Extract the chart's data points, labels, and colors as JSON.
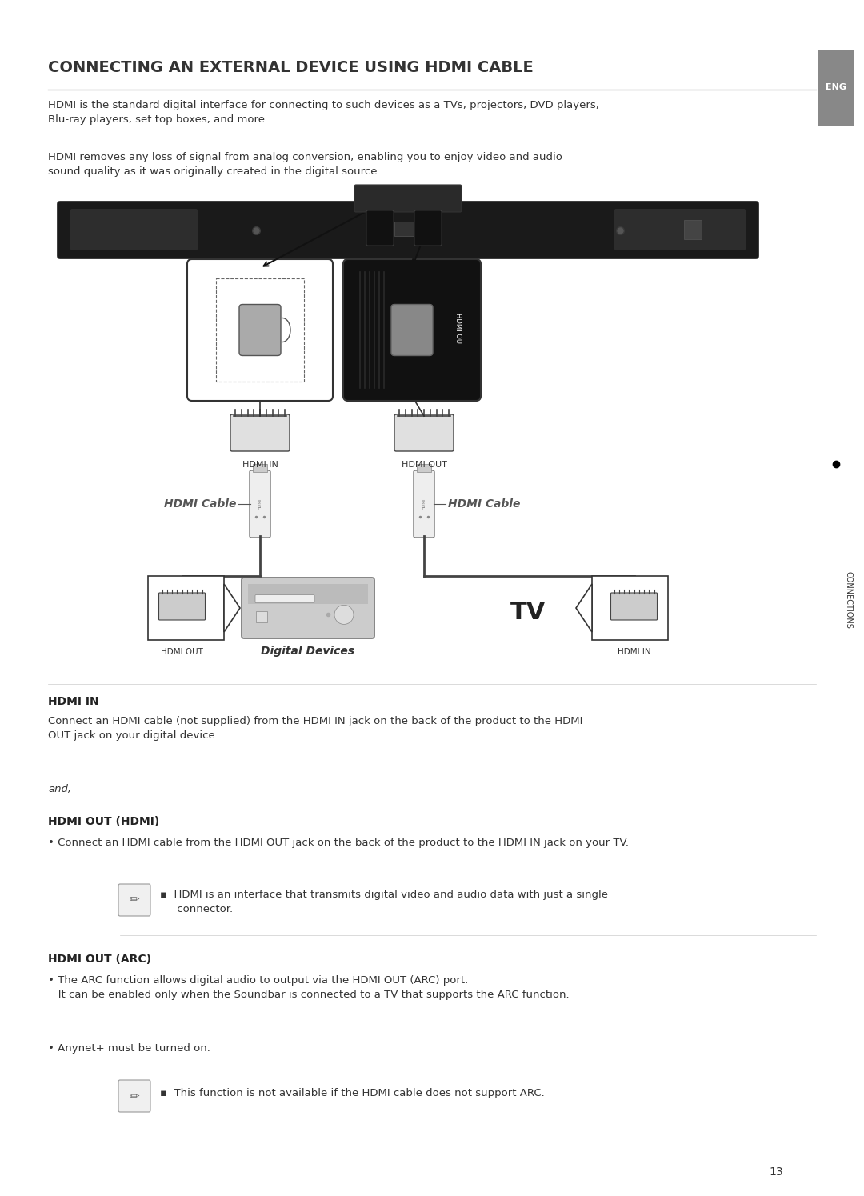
{
  "title": "CONNECTING AN EXTERNAL DEVICE USING HDMI CABLE",
  "bg_color": "#ffffff",
  "text_color": "#333333",
  "para1": "HDMI is the standard digital interface for connecting to such devices as a TVs, projectors, DVD players,\nBlu-ray players, set top boxes, and more.",
  "para2": "HDMI removes any loss of signal from analog conversion, enabling you to enjoy video and audio\nsound quality as it was originally created in the digital source.",
  "hdmi_in_label": "HDMI IN",
  "hdmi_in_text": "Connect an HDMI cable (not supplied) from the HDMI IN jack on the back of the product to the HDMI\nOUT jack on your digital device.",
  "and_text": "and,",
  "hdmi_out_hdmi_label": "HDMI OUT (HDMI)",
  "hdmi_out_hdmi_text": "• Connect an HDMI cable from the HDMI OUT jack on the back of the product to the HDMI IN jack on your TV.",
  "note1_text": "▪  HDMI is an interface that transmits digital video and audio data with just a single\n     connector.",
  "hdmi_out_arc_label": "HDMI OUT (ARC)",
  "hdmi_out_arc_bullet1": "• The ARC function allows digital audio to output via the HDMI OUT (ARC) port.\n   It can be enabled only when the Soundbar is connected to a TV that supports the ARC function.",
  "hdmi_out_arc_bullet2": "• Anynet+ must be turned on.",
  "note2_text": "▪  This function is not available if the HDMI cable does not support ARC.",
  "page_number": "13",
  "eng_label": "ENG",
  "connections_label": "CONNECTIONS"
}
